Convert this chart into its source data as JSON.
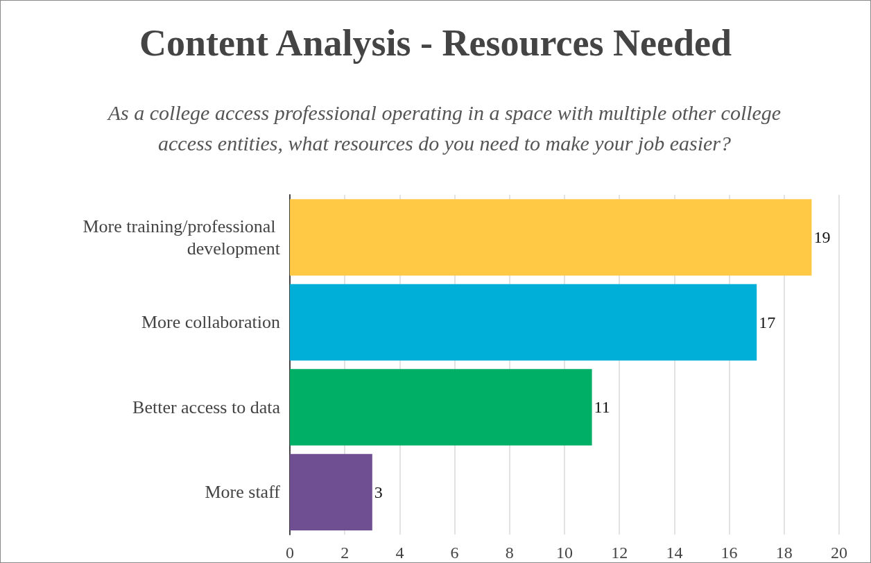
{
  "chart_data": {
    "type": "bar",
    "orientation": "horizontal",
    "title": "Content Analysis - Resources Needed",
    "subtitle": "As a college access professional operating in a space with multiple other college access entities, what resources do you need to make your job easier?",
    "categories": [
      "More training/professional development",
      "More collaboration",
      "Better access to data",
      "More staff"
    ],
    "values": [
      19,
      17,
      11,
      3
    ],
    "colors": [
      "#ffc845",
      "#00afd7",
      "#00af66",
      "#6f4e91"
    ],
    "xlim": [
      0,
      20
    ],
    "xticks": [
      0,
      2,
      4,
      6,
      8,
      10,
      12,
      14,
      16,
      18,
      20
    ],
    "grid": "x",
    "data_labels": true
  }
}
